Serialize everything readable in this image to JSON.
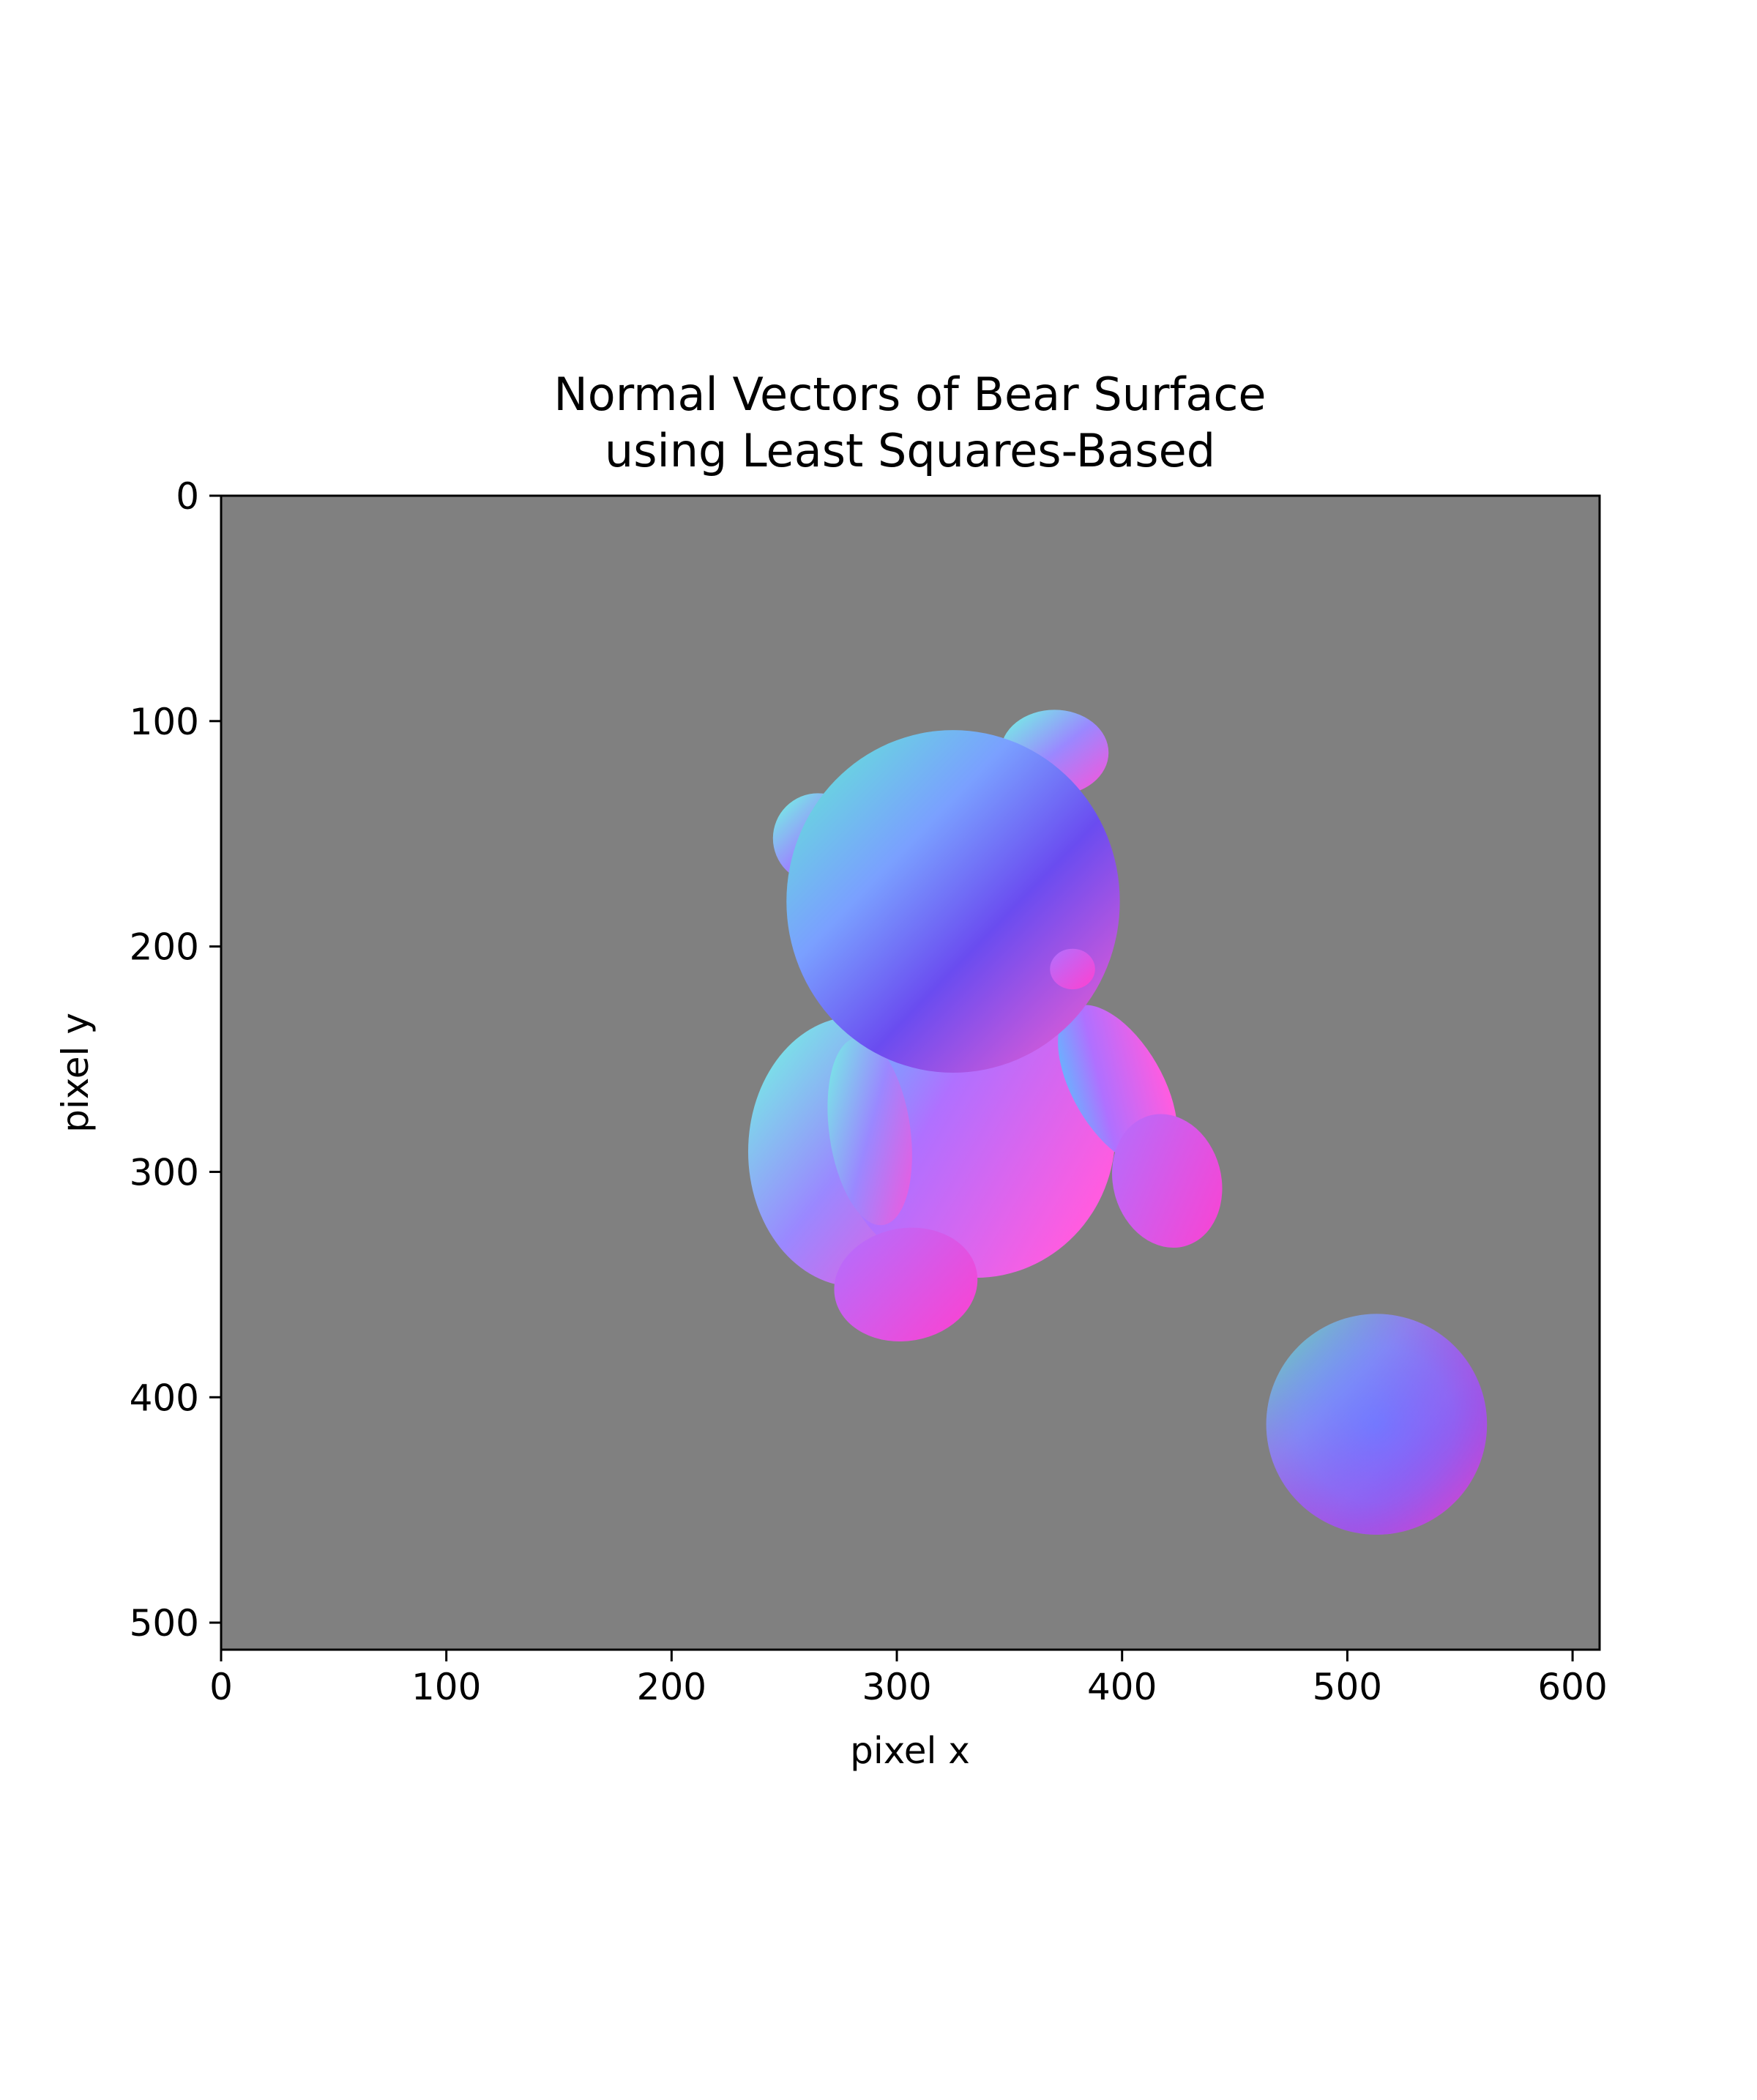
{
  "chart_data": {
    "type": "heatmap",
    "title_lines": [
      "Normal Vectors of Bear Surface",
      "using Least Squares-Based"
    ],
    "xlabel": "pixel x",
    "ylabel": "pixel y",
    "xlim": [
      0,
      612
    ],
    "ylim": [
      512,
      0
    ],
    "x_ticks": [
      0,
      100,
      200,
      300,
      400,
      500,
      600
    ],
    "y_ticks": [
      0,
      100,
      200,
      300,
      400,
      500
    ],
    "grid": false,
    "background_color": "#808080",
    "colormap": "surface normal (x,y,z) mapped to RGB",
    "objects": [
      {
        "name": "bear",
        "extent_x": [
          238,
          446
        ],
        "extent_y": [
          93,
          376
        ]
      },
      {
        "name": "sphere",
        "center": [
          513,
          412
        ],
        "radius": 49
      }
    ]
  }
}
